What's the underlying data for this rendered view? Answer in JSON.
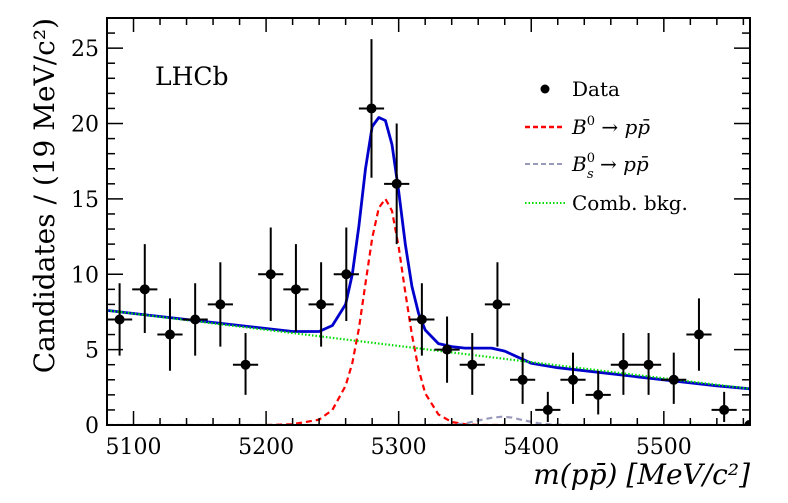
{
  "chart_data": {
    "type": "scatter",
    "title": "",
    "experiment_label": "LHCb",
    "xlabel": "m(pp̄) [MeV/c²]",
    "ylabel": "Candidates / (19 MeV/c²)",
    "xlim": [
      5080,
      5565
    ],
    "ylim": [
      0,
      27
    ],
    "xticks": [
      5100,
      5200,
      5300,
      5400,
      5500
    ],
    "yticks": [
      0,
      5,
      10,
      15,
      20,
      25
    ],
    "xtick_labels": [
      "5100",
      "5200",
      "5300",
      "5400",
      "5500"
    ],
    "ytick_labels": [
      "0",
      "5",
      "10",
      "15",
      "20",
      "25"
    ],
    "legend_position": "top-right",
    "bin_width": 19,
    "series": [
      {
        "name": "Data",
        "kind": "points_with_errors",
        "color": "#000000",
        "x": [
          5089.5,
          5108.5,
          5127.5,
          5146.5,
          5165.5,
          5184.5,
          5203.5,
          5222.5,
          5241.5,
          5260.5,
          5279.5,
          5298.5,
          5317.5,
          5336.5,
          5355.5,
          5374.5,
          5393.5,
          5412.5,
          5431.5,
          5450.5,
          5469.5,
          5488.5,
          5507.5,
          5526.5,
          5545.5,
          5564.5
        ],
        "y": [
          7,
          9,
          6,
          7,
          8,
          4,
          10,
          9,
          8,
          10,
          21,
          16,
          7,
          5,
          4,
          8,
          3,
          1,
          3,
          2,
          4,
          4,
          3,
          6,
          1,
          0
        ],
        "yerr_low": [
          2.4,
          2.9,
          2.4,
          2.4,
          2.8,
          2.0,
          3.1,
          2.8,
          2.8,
          3.1,
          4.6,
          4.0,
          2.4,
          2.2,
          2.0,
          2.8,
          1.6,
          0.8,
          1.6,
          1.3,
          2.0,
          2.0,
          1.6,
          2.4,
          0.8,
          0
        ],
        "yerr_high": [
          2.4,
          3.0,
          2.4,
          2.4,
          2.8,
          2.1,
          3.1,
          3.0,
          2.8,
          3.1,
          4.6,
          4.0,
          2.4,
          2.2,
          2.1,
          2.8,
          1.8,
          1.2,
          1.8,
          1.6,
          2.1,
          2.1,
          1.8,
          2.4,
          1.2,
          0
        ]
      },
      {
        "name": "total_fit",
        "kind": "line",
        "color": "#0000cc",
        "style": "solid",
        "x": [
          5080,
          5100,
          5120,
          5140,
          5160,
          5180,
          5200,
          5220,
          5240,
          5250,
          5260,
          5265,
          5270,
          5275,
          5280,
          5285,
          5290,
          5295,
          5300,
          5305,
          5310,
          5315,
          5320,
          5330,
          5340,
          5350,
          5360,
          5370,
          5380,
          5390,
          5400,
          5420,
          5440,
          5460,
          5480,
          5500,
          5520,
          5540,
          5565
        ],
        "y": [
          7.6,
          7.4,
          7.2,
          7.0,
          6.8,
          6.6,
          6.4,
          6.2,
          6.2,
          6.6,
          8.0,
          10.0,
          13.2,
          17.0,
          19.8,
          20.4,
          20.2,
          18.6,
          15.5,
          12.0,
          9.2,
          7.4,
          6.3,
          5.4,
          5.2,
          5.1,
          5.1,
          5.1,
          4.9,
          4.5,
          4.1,
          3.8,
          3.6,
          3.4,
          3.2,
          3.0,
          2.8,
          2.6,
          2.4
        ]
      },
      {
        "name": "B⁰ → pp̄",
        "kind": "line",
        "color": "#ff0000",
        "style": "dashed",
        "x": [
          5200,
          5220,
          5240,
          5250,
          5260,
          5265,
          5270,
          5275,
          5280,
          5285,
          5290,
          5295,
          5300,
          5305,
          5310,
          5315,
          5320,
          5330,
          5340,
          5350,
          5360,
          5380
        ],
        "y": [
          0,
          0.05,
          0.35,
          1.0,
          2.6,
          4.1,
          6.4,
          9.4,
          12.4,
          14.4,
          15.0,
          14.2,
          11.8,
          8.8,
          6.0,
          3.7,
          2.1,
          0.7,
          0.2,
          0.05,
          0,
          0
        ]
      },
      {
        "name": "B_s⁰ → pp̄",
        "kind": "line",
        "color": "#9999bb",
        "style": "dashed",
        "x": [
          5080,
          5320,
          5340,
          5350,
          5360,
          5370,
          5378,
          5385,
          5395,
          5405,
          5415,
          5430,
          5565
        ],
        "y": [
          0,
          0,
          0.02,
          0.1,
          0.3,
          0.48,
          0.55,
          0.5,
          0.3,
          0.12,
          0.03,
          0,
          0
        ]
      },
      {
        "name": "Comb. bkg.",
        "kind": "line",
        "color": "#00dd00",
        "style": "dotted",
        "x": [
          5080,
          5565
        ],
        "y": [
          7.6,
          2.4
        ]
      }
    ]
  },
  "legend": {
    "items": [
      {
        "label": "Data",
        "sup": "",
        "sub": ""
      },
      {
        "label": "B",
        "sup": "0",
        "sub": "",
        "suffix": " → pp̄"
      },
      {
        "label": "B",
        "sup": "0",
        "sub": "s",
        "suffix": " → pp̄"
      },
      {
        "label": "Comb. bkg.",
        "sup": "",
        "sub": ""
      }
    ]
  },
  "colors": {
    "data": "#000000",
    "total_fit": "#0000cc",
    "b0": "#ff0000",
    "bs": "#9999bb",
    "comb": "#00dd00"
  }
}
